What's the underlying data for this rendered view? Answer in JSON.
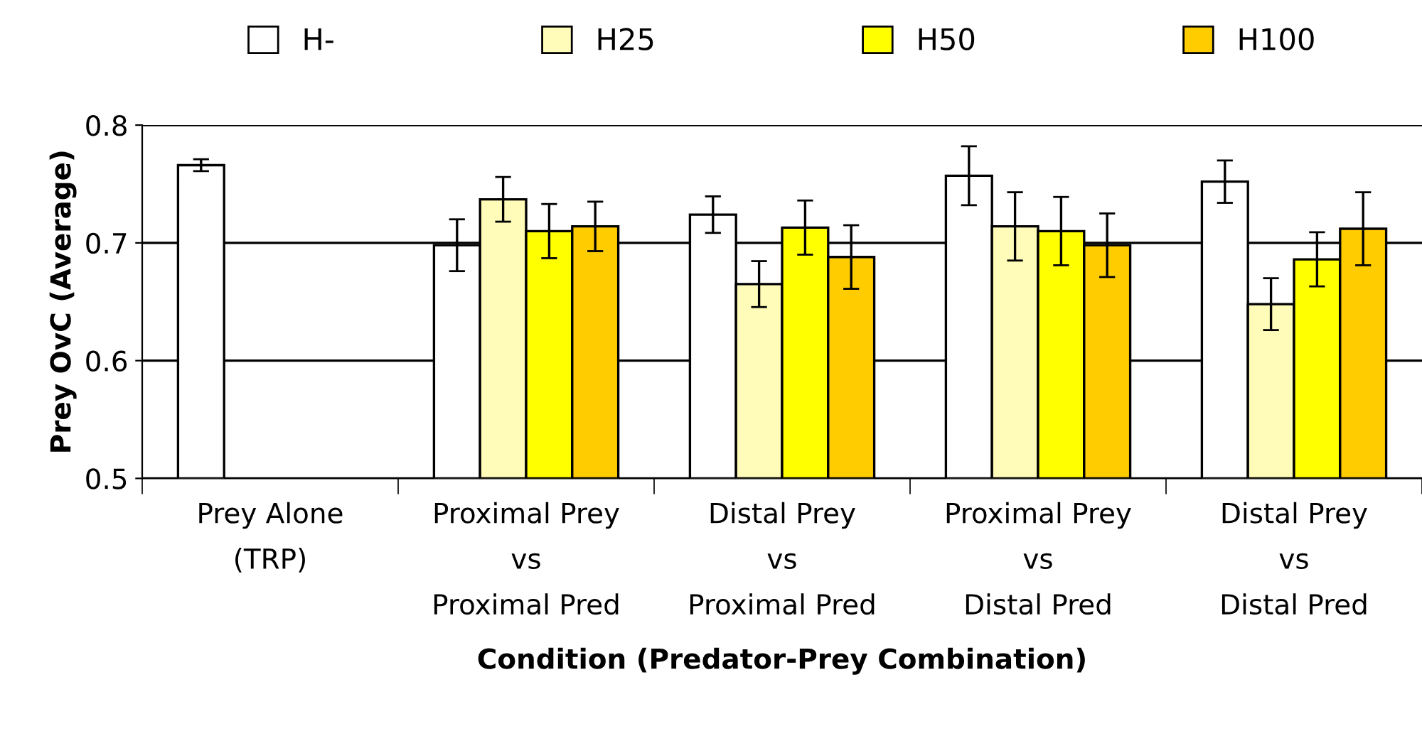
{
  "chart_data": {
    "type": "bar",
    "xlabel": "Condition (Predator-Prey Combination)",
    "ylabel": "Prey OvC (Average)",
    "categories": [
      "Prey Alone\n(TRP)",
      "Proximal Prey\nvs\nProximal Pred",
      "Distal Prey\nvs\nProximal Pred",
      "Proximal Prey\nvs\nDistal Pred",
      "Distal Prey\nvs\nDistal Pred"
    ],
    "series": [
      {
        "name": "H-",
        "color": "#ffffff",
        "values": [
          0.766,
          0.698,
          0.724,
          0.757,
          0.752
        ],
        "errors": [
          0.005,
          0.022,
          0.0155,
          0.025,
          0.018
        ]
      },
      {
        "name": "H25",
        "color": "#fffbb8",
        "values": [
          null,
          0.737,
          0.665,
          0.714,
          0.648
        ],
        "errors": [
          null,
          0.019,
          0.0195,
          0.029,
          0.022
        ]
      },
      {
        "name": "H50",
        "color": "#ffff00",
        "values": [
          null,
          0.71,
          0.713,
          0.71,
          0.686
        ],
        "errors": [
          null,
          0.023,
          0.023,
          0.029,
          0.023
        ]
      },
      {
        "name": "H100",
        "color": "#ffcc00",
        "values": [
          null,
          0.714,
          0.688,
          0.698,
          0.712
        ],
        "errors": [
          null,
          0.021,
          0.027,
          0.027,
          0.031
        ]
      }
    ],
    "ylim": [
      0.5,
      0.8
    ],
    "yticks": [
      {
        "value": 0.5,
        "label": "0.5"
      },
      {
        "value": 0.6,
        "label": "0.6"
      },
      {
        "value": 0.7,
        "label": "0.7"
      },
      {
        "value": 0.8,
        "label": "0.8"
      }
    ],
    "grid": "y",
    "legend": "top"
  }
}
